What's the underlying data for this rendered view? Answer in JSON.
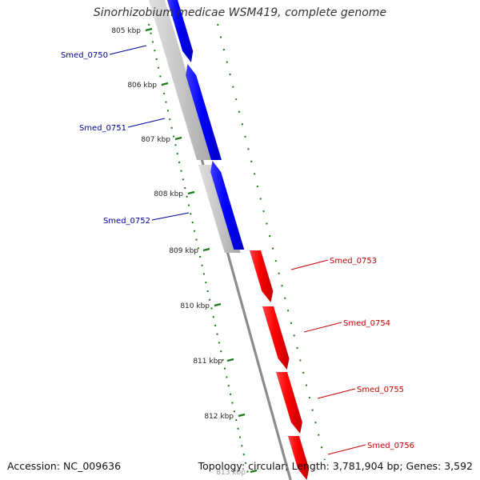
{
  "title": "Sinorhizobium medicae WSM419, complete genome",
  "footer": {
    "accession": "Accession: NC_009636",
    "topology": "Topology: circular; Length: 3,781,904 bp; Genes: 3,592"
  },
  "colors": {
    "forward_gene": "#0000ff",
    "reverse_gene": "#ff0000",
    "forward_label": "#00009a",
    "reverse_label": "#c80000",
    "tick": "#1a7a1a",
    "backbone": "#8c8c8c"
  },
  "ticks": [
    {
      "label": "805 kbp"
    },
    {
      "label": "806 kbp"
    },
    {
      "label": "807 kbp"
    },
    {
      "label": "808 kbp"
    },
    {
      "label": "809 kbp"
    },
    {
      "label": "810 kbp"
    },
    {
      "label": "811 kbp"
    },
    {
      "label": "812 kbp"
    },
    {
      "label": "813 kbp"
    }
  ],
  "genes": [
    {
      "name": "Smed_0750",
      "strand": "forward"
    },
    {
      "name": "Smed_0751",
      "strand": "forward"
    },
    {
      "name": "Smed_0752",
      "strand": "forward"
    },
    {
      "name": "Smed_0753",
      "strand": "reverse"
    },
    {
      "name": "Smed_0754",
      "strand": "reverse"
    },
    {
      "name": "Smed_0755",
      "strand": "reverse"
    },
    {
      "name": "Smed_0756",
      "strand": "reverse"
    }
  ]
}
